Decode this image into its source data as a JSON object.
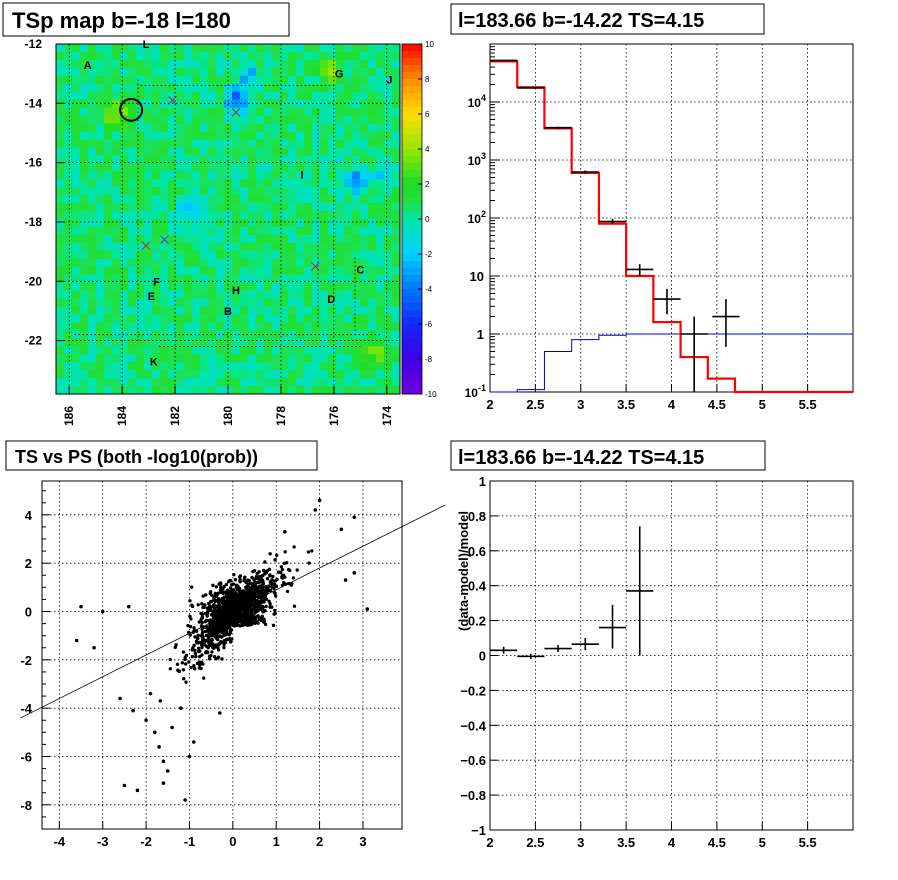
{
  "colors": {
    "background": "#ffffff",
    "axis": "#000000",
    "grid": "#000000",
    "data_marker": "#000000",
    "model_line": "#ff0000",
    "aux_line": "#0000cc",
    "fit_line": "#000000",
    "map_base": "#22e040"
  },
  "titles": {
    "map": "TSp map b=-18 l=180",
    "spectrum": "l=183.66 b=-14.22 TS=4.15",
    "scatter": "TS vs PS (both -log10(prob))",
    "residual": "l=183.66 b=-14.22 TS=4.15"
  },
  "chart_data": [
    {
      "type": "heatmap",
      "title": "TSp map b=-18 l=180",
      "x_ticks": [
        "186",
        "184",
        "182",
        "180",
        "178",
        "176",
        "174"
      ],
      "xlim": [
        186.5,
        173.5
      ],
      "y_ticks": [
        "-12",
        "-14",
        "-16",
        "-18",
        "-20",
        "-22"
      ],
      "ylim": [
        -23.8,
        -12
      ],
      "z_ticks": [
        "10",
        "8",
        "6",
        "4",
        "2",
        "0",
        "-2",
        "-4",
        "-6",
        "-8",
        "-10"
      ],
      "zlim": [
        -10,
        10
      ],
      "background_value": 0.5,
      "hotspots": [
        {
          "l": 179.7,
          "b": -13.9,
          "value": -5
        },
        {
          "l": 175.2,
          "b": -16.6,
          "value": -4
        },
        {
          "l": 181.5,
          "b": -17.6,
          "value": -3
        },
        {
          "l": 179.2,
          "b": -13.1,
          "value": -3
        },
        {
          "l": 174.2,
          "b": -16.4,
          "value": -2
        },
        {
          "l": 184.2,
          "b": -14.4,
          "value": 4
        },
        {
          "l": 176.2,
          "b": -12.9,
          "value": 3
        },
        {
          "l": 174.5,
          "b": -22.4,
          "value": 3
        }
      ],
      "labels": [
        {
          "text": "A",
          "l": 185.3,
          "b": -12.7
        },
        {
          "text": "L",
          "l": 183.1,
          "b": -12.0
        },
        {
          "text": "G",
          "l": 175.8,
          "b": -13.0
        },
        {
          "text": "J",
          "l": 173.9,
          "b": -13.2
        },
        {
          "text": "I",
          "l": 177.2,
          "b": -16.4
        },
        {
          "text": "F",
          "l": 182.7,
          "b": -20.0
        },
        {
          "text": "E",
          "l": 182.9,
          "b": -20.5
        },
        {
          "text": "H",
          "l": 179.7,
          "b": -20.3
        },
        {
          "text": "B",
          "l": 180.0,
          "b": -21.0
        },
        {
          "text": "C",
          "l": 175.0,
          "b": -19.6
        },
        {
          "text": "D",
          "l": 176.1,
          "b": -20.6
        },
        {
          "text": "K",
          "l": 182.8,
          "b": -22.7
        }
      ],
      "markers": [
        {
          "l": 182.1,
          "b": -13.9
        },
        {
          "l": 179.7,
          "b": -14.3
        },
        {
          "l": 183.1,
          "b": -18.8
        },
        {
          "l": 182.4,
          "b": -18.6
        },
        {
          "l": 176.7,
          "b": -19.5
        }
      ],
      "circle": {
        "l": 183.66,
        "b": -14.22,
        "radius_deg": 0.3
      }
    },
    {
      "type": "line",
      "title": "l=183.66 b=-14.22 TS=4.15",
      "log_y": true,
      "xlim": [
        2,
        6
      ],
      "ylim": [
        0.1,
        100000
      ],
      "x_ticks": [
        "2",
        "2.5",
        "3",
        "3.5",
        "4",
        "4.5",
        "5",
        "5.5"
      ],
      "y_ticks": [
        "10^-1",
        "1",
        "10",
        "10^2",
        "10^3",
        "10^4"
      ],
      "series": [
        {
          "style": "steps",
          "bin_edges": [
            2,
            2.3,
            2.6,
            2.9,
            3.2,
            3.5,
            3.8,
            4.1,
            4.4,
            4.7,
            5.0,
            5.3,
            5.6,
            6.0
          ],
          "values": [
            50000,
            18000,
            3500,
            600,
            80,
            10,
            1.6,
            0.4,
            0.17,
            0.1,
            0.1,
            0.1,
            0.1
          ]
        },
        {
          "style": "steps",
          "bin_edges": [
            2,
            2.3,
            2.6,
            2.9,
            3.2,
            3.5,
            3.8,
            4.1,
            4.4,
            4.7,
            5.0,
            5.3,
            5.6,
            6.0
          ],
          "values": [
            0.06,
            0.11,
            0.5,
            0.8,
            0.95,
            1.0,
            1.0,
            1.0,
            1.0,
            1.0,
            1.0,
            1.0,
            1.0
          ]
        },
        {
          "style": "points",
          "x": [
            2.15,
            2.45,
            2.75,
            3.05,
            3.35,
            3.65,
            3.95,
            4.25,
            4.6
          ],
          "y": [
            52000,
            17500,
            3600,
            620,
            87,
            13,
            4,
            1,
            2
          ],
          "x_err": 0.15,
          "y_lo": [
            51000,
            17000,
            3450,
            580,
            78,
            10,
            2.2,
            0.08,
            0.6
          ],
          "y_hi": [
            53000,
            18000,
            3750,
            660,
            96,
            16,
            6,
            2,
            4
          ]
        }
      ]
    },
    {
      "type": "scatter",
      "title": "TS vs PS (both -log10(prob))",
      "xlim": [
        -4.4,
        3.9
      ],
      "ylim": [
        -9,
        5.4
      ],
      "x_ticks": [
        "-4",
        "-3",
        "-2",
        "-1",
        "0",
        "1",
        "2",
        "3"
      ],
      "y_ticks": [
        "4",
        "2",
        "0",
        "-2",
        "-4",
        "-6",
        "-8"
      ],
      "fit_line": {
        "slope": 0.9,
        "intercept": 0.0
      },
      "outliers": [
        [
          -3.5,
          0.2
        ],
        [
          -3.0,
          0.0
        ],
        [
          -2.4,
          0.2
        ],
        [
          -3.6,
          -1.2
        ],
        [
          -3.2,
          -1.5
        ],
        [
          -2.3,
          -4.1
        ],
        [
          -2.0,
          -4.5
        ],
        [
          -1.8,
          -5.0
        ],
        [
          -1.7,
          -5.6
        ],
        [
          -1.6,
          -6.2
        ],
        [
          -1.5,
          -6.6
        ],
        [
          -1.6,
          -7.1
        ],
        [
          -1.1,
          -7.8
        ],
        [
          -2.5,
          -7.2
        ],
        [
          -2.2,
          -7.4
        ],
        [
          -1.0,
          -6.0
        ],
        [
          -0.9,
          -5.4
        ],
        [
          -1.9,
          -3.4
        ],
        [
          -2.6,
          -3.6
        ],
        [
          -1.4,
          -4.8
        ],
        [
          -1.2,
          -4.0
        ],
        [
          -0.3,
          -4.2
        ],
        [
          2.0,
          4.6
        ],
        [
          2.8,
          3.9
        ],
        [
          2.5,
          3.4
        ],
        [
          3.1,
          0.1
        ],
        [
          2.6,
          1.3
        ],
        [
          2.8,
          1.6
        ],
        [
          1.9,
          4.2
        ],
        [
          1.2,
          3.3
        ]
      ]
    },
    {
      "type": "line",
      "title": "l=183.66 b=-14.22 TS=4.15",
      "ylabel": "(data-model)/model",
      "xlim": [
        2,
        6
      ],
      "ylim": [
        -1,
        1
      ],
      "x_ticks": [
        "2",
        "2.5",
        "3",
        "3.5",
        "4",
        "4.5",
        "5",
        "5.5"
      ],
      "y_ticks": [
        "1",
        "0.8",
        "0.6",
        "0.4",
        "0.2",
        "0",
        "-0.2",
        "-0.4",
        "-0.6",
        "-0.8",
        "-1"
      ],
      "series": [
        {
          "style": "points",
          "x": [
            2.15,
            2.45,
            2.75,
            3.05,
            3.35,
            3.65
          ],
          "y": [
            0.03,
            -0.005,
            0.04,
            0.065,
            0.16,
            0.37
          ],
          "x_err": 0.15,
          "y_lo": [
            0.01,
            -0.02,
            0.02,
            0.03,
            0.04,
            0.0
          ],
          "y_hi": [
            0.05,
            0.01,
            0.06,
            0.1,
            0.29,
            0.74
          ]
        }
      ]
    }
  ]
}
